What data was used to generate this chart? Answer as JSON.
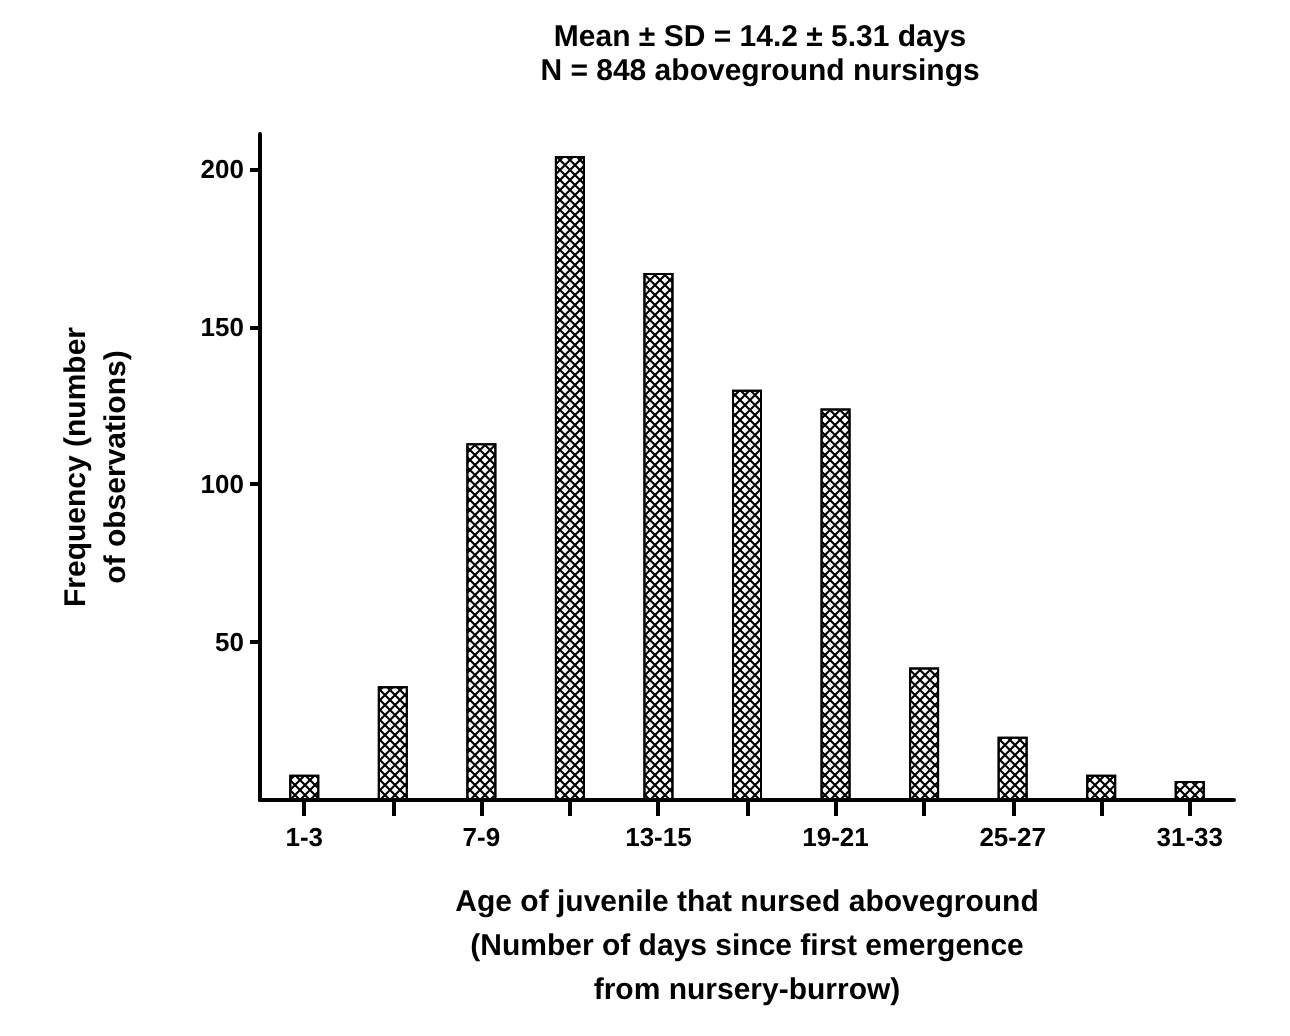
{
  "chart_data": {
    "type": "bar",
    "title": "Mean ± SD = 14.2 ± 5.31 days",
    "subtitle": "N = 848 aboveground nursings",
    "xlabel": "Age of juvenile that nursed aboveground\n(Number of days since first emergence\nfrom nursery-burrow)",
    "ylabel": "Frequency (number\nof observations)",
    "categories": [
      "1-3",
      null,
      "7-9",
      null,
      "13-15",
      null,
      "19-21",
      null,
      "25-27",
      null,
      "31-33"
    ],
    "values": [
      8,
      36,
      113,
      204,
      167,
      130,
      124,
      42,
      20,
      8,
      6
    ],
    "color": "#000000",
    "ylim": [
      0,
      211
    ],
    "yticks": [
      50,
      100,
      150,
      200
    ],
    "grid": false
  }
}
